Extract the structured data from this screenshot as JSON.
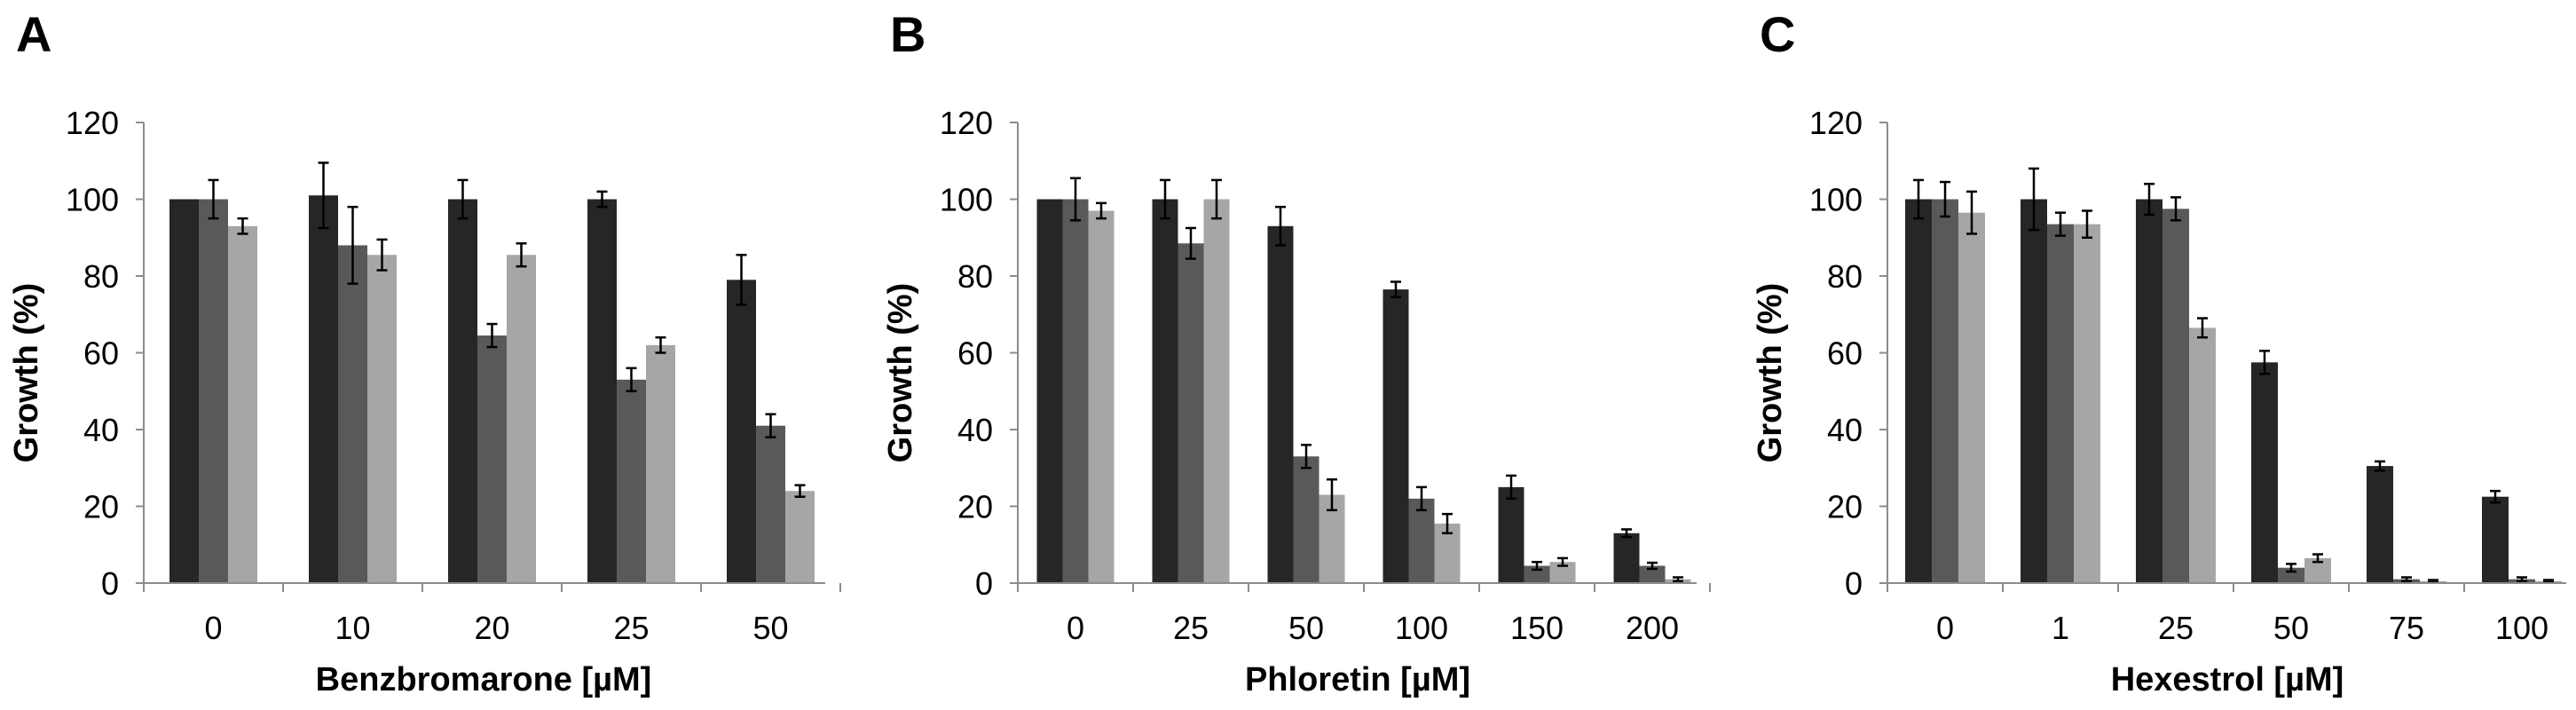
{
  "colors": {
    "series_1": "#262626",
    "series_2": "#595959",
    "series_3": "#a6a6a6",
    "axis": "#8c8c8c",
    "error_bar": "#000000"
  },
  "chart_data": [
    {
      "type": "bar",
      "panel": "A",
      "xlabel": "Benzbromarone [µM]",
      "ylabel": "Growth (%)",
      "ylim": [
        0,
        120
      ],
      "yticks": [
        "0",
        "20",
        "40",
        "60",
        "80",
        "100",
        "120"
      ],
      "grid": false,
      "categories": [
        "0",
        "10",
        "20",
        "25",
        "50"
      ],
      "series": [
        {
          "values": [
            100,
            101,
            100,
            100,
            79
          ],
          "errors": [
            0,
            8.5,
            5,
            2,
            6.5
          ]
        },
        {
          "values": [
            100,
            88,
            64.5,
            53,
            41
          ],
          "errors": [
            5,
            10,
            3,
            3,
            3
          ]
        },
        {
          "values": [
            93,
            85.5,
            85.5,
            62,
            24
          ],
          "errors": [
            2,
            4,
            3,
            2,
            1.5
          ]
        }
      ]
    },
    {
      "type": "bar",
      "panel": "B",
      "xlabel": "Phloretin [µM]",
      "ylabel": "Growth (%)",
      "ylim": [
        0,
        120
      ],
      "yticks": [
        "0",
        "20",
        "40",
        "60",
        "80",
        "100",
        "120"
      ],
      "grid": false,
      "categories": [
        "0",
        "25",
        "50",
        "100",
        "150",
        "200"
      ],
      "series": [
        {
          "values": [
            100,
            100,
            93,
            76.5,
            25,
            13
          ],
          "errors": [
            0,
            5,
            5,
            2,
            3,
            1
          ]
        },
        {
          "values": [
            100,
            88.5,
            33,
            22,
            4.5,
            4.5
          ],
          "errors": [
            5.5,
            4,
            3,
            3,
            1,
            0.8
          ]
        },
        {
          "values": [
            97,
            100,
            23,
            15.5,
            5.5,
            1
          ],
          "errors": [
            2,
            5,
            4,
            2.5,
            1,
            0.5
          ]
        }
      ]
    },
    {
      "type": "bar",
      "panel": "C",
      "xlabel": "Hexestrol [µM]",
      "ylabel": "Growth (%)",
      "ylim": [
        0,
        120
      ],
      "yticks": [
        "0",
        "20",
        "40",
        "60",
        "80",
        "100",
        "120"
      ],
      "grid": false,
      "categories": [
        "0",
        "1",
        "25",
        "50",
        "75",
        "100"
      ],
      "series": [
        {
          "values": [
            100,
            100,
            100,
            57.5,
            30.5,
            22.5
          ],
          "errors": [
            5,
            8,
            4,
            3,
            1.2,
            1.5
          ]
        },
        {
          "values": [
            100,
            93.5,
            97.5,
            4,
            1,
            1
          ],
          "errors": [
            4.5,
            3,
            3,
            1,
            0.5,
            0.5
          ]
        },
        {
          "values": [
            96.5,
            93.5,
            66.5,
            6.5,
            0.5,
            0.5
          ],
          "errors": [
            5.5,
            3.5,
            2.5,
            1,
            0.3,
            0.3
          ]
        }
      ]
    }
  ]
}
